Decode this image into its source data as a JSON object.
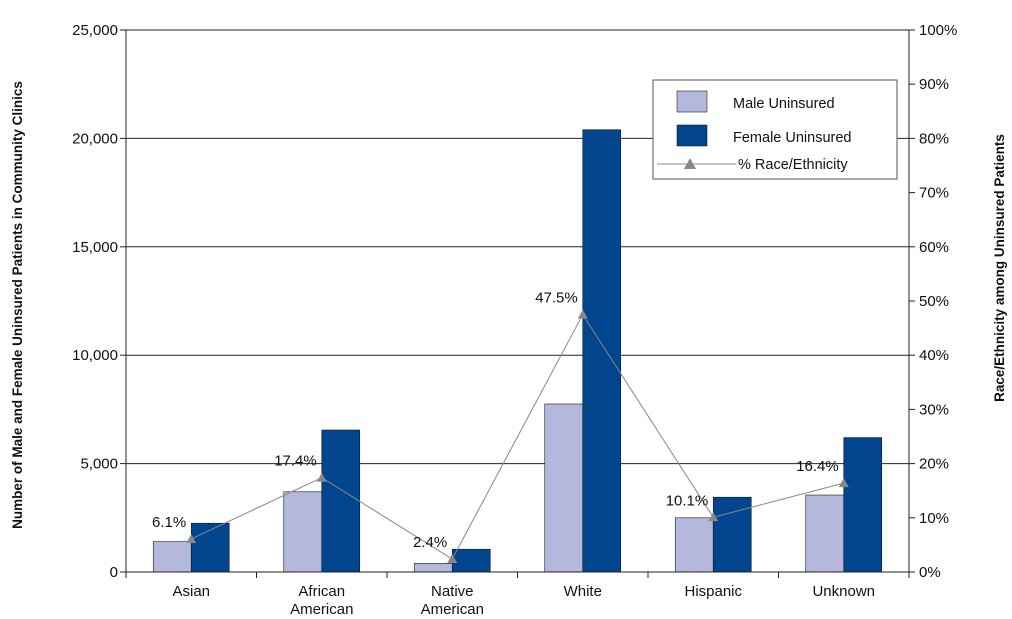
{
  "chart_data": {
    "type": "bar",
    "categories": [
      [
        "Asian"
      ],
      [
        "African",
        "American"
      ],
      [
        "Native",
        "American"
      ],
      [
        "White"
      ],
      [
        "Hispanic"
      ],
      [
        "Unknown"
      ]
    ],
    "series": [
      {
        "name": "Male Uninsured",
        "type": "bar",
        "axis": "left",
        "color": "#b4b8dc",
        "values": [
          1400,
          3700,
          400,
          7750,
          2500,
          3550
        ]
      },
      {
        "name": "Female Uninsured",
        "type": "bar",
        "axis": "left",
        "color": "#00458e",
        "values": [
          2250,
          6550,
          1050,
          20400,
          3450,
          6200
        ]
      },
      {
        "name": "% Race/Ethnicity",
        "type": "line",
        "axis": "right",
        "color": "#888888",
        "values": [
          6.1,
          17.4,
          2.4,
          47.5,
          10.1,
          16.4
        ],
        "labels": [
          "6.1%",
          "17.4%",
          "2.4%",
          "47.5%",
          "10.1%",
          "16.4%"
        ]
      }
    ],
    "ylabel": "Number of Male and Female Uninsured Patients in Community Clinics",
    "y2label": "Race/Ethnicity among Uninsured Patients",
    "ylim": [
      0,
      25000
    ],
    "y2lim": [
      0,
      100
    ],
    "yticks": [
      "0",
      "5,000",
      "10,000",
      "15,000",
      "20,000",
      "25,000"
    ],
    "y2ticks": [
      "0%",
      "10%",
      "20%",
      "30%",
      "40%",
      "50%",
      "60%",
      "70%",
      "80%",
      "90%",
      "100%"
    ],
    "grid": true,
    "legend": "top-right"
  }
}
